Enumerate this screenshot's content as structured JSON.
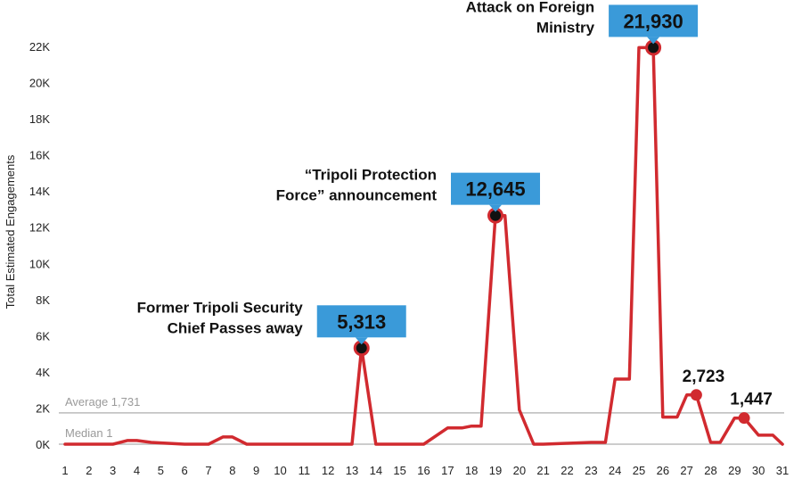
{
  "chart_data": {
    "type": "line",
    "ylabel": "Total Estimated Engagements",
    "xlabel": "",
    "ylim": [
      0,
      22000
    ],
    "y_ticks": [
      0,
      2000,
      4000,
      6000,
      8000,
      10000,
      12000,
      14000,
      16000,
      18000,
      20000,
      22000
    ],
    "y_tick_labels": [
      "0K",
      "2K",
      "4K",
      "6K",
      "8K",
      "10K",
      "12K",
      "14K",
      "16K",
      "18K",
      "20K",
      "22K"
    ],
    "x_tick_labels": [
      "1",
      "2",
      "3",
      "4",
      "5",
      "6",
      "7",
      "8",
      "9",
      "10",
      "11",
      "12",
      "13",
      "14",
      "15",
      "16",
      "17",
      "18",
      "19",
      "20",
      "21",
      "22",
      "23",
      "24",
      "25",
      "26",
      "27",
      "28",
      "29",
      "30",
      "31"
    ],
    "series": [
      {
        "color": "#d12a2f",
        "x": [
          1,
          2,
          3,
          3.6,
          4,
          4.6,
          6,
          7,
          7.6,
          8,
          8.6,
          9.6,
          10,
          11,
          12,
          12.6,
          13,
          13.4,
          14,
          15,
          16,
          17,
          17.6,
          18,
          18.4,
          19,
          19.4,
          20,
          20.6,
          21,
          22,
          23,
          23.6,
          24,
          24.6,
          25,
          25.6,
          26,
          26.6,
          27,
          27.4,
          28,
          28.4,
          29,
          29.4,
          30,
          30.6,
          31
        ],
        "y": [
          0,
          0,
          0,
          200,
          200,
          100,
          0,
          0,
          400,
          400,
          0,
          0,
          0,
          0,
          0,
          0,
          0,
          5313,
          0,
          0,
          0,
          900,
          900,
          1000,
          1000,
          12645,
          12645,
          1900,
          0,
          0,
          50,
          100,
          100,
          3600,
          3600,
          21930,
          21930,
          1500,
          1500,
          2723,
          2723,
          100,
          100,
          1447,
          1447,
          500,
          500,
          0
        ]
      }
    ],
    "reference_lines": [
      {
        "label": "Average 1,731",
        "value": 1731,
        "color": "#bbbbbb"
      },
      {
        "label": "Median 1",
        "value": 1,
        "color": "#bbbbbb"
      }
    ],
    "annotations": [
      {
        "text_lines": [
          "Former Tripoli Security",
          "Chief Passes away"
        ],
        "value_label": "5,313",
        "x": 13.4,
        "y": 5313,
        "style": "callout"
      },
      {
        "text_lines": [
          "“Tripoli Protection",
          "Force” announcement"
        ],
        "value_label": "12,645",
        "x": 19,
        "y": 12645,
        "style": "callout"
      },
      {
        "text_lines": [
          "Attack on Foreign",
          "Ministry"
        ],
        "value_label": "21,930",
        "x": 25.6,
        "y": 21930,
        "style": "callout"
      },
      {
        "text_lines": [],
        "value_label": "2,723",
        "x": 27.4,
        "y": 2723,
        "style": "plain"
      },
      {
        "text_lines": [],
        "value_label": "1,447",
        "x": 29.4,
        "y": 1447,
        "style": "plain"
      }
    ],
    "callout_color": "#3a9ad9",
    "grid": false,
    "legend": "none"
  }
}
